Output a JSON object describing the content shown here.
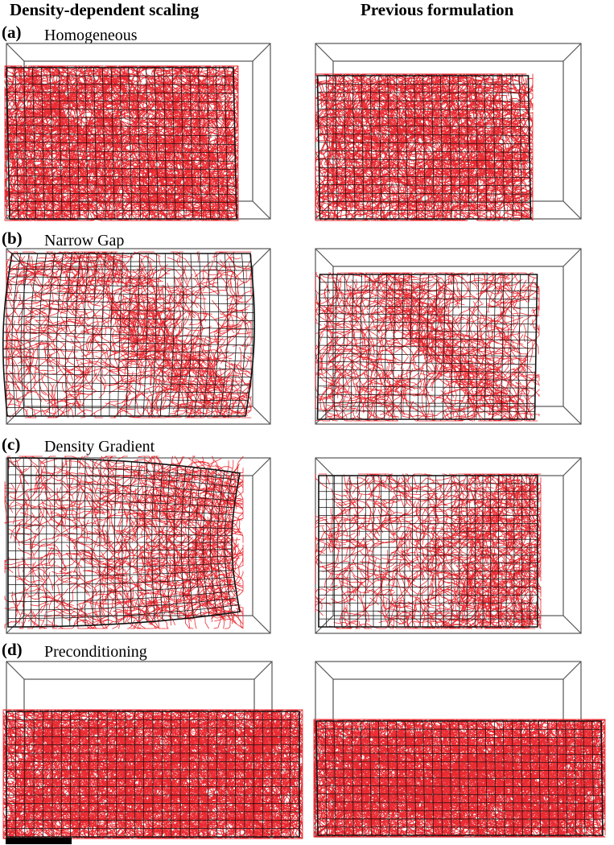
{
  "figure": {
    "column_headers": {
      "left": "Density-dependent scaling",
      "right": "Previous formulation"
    },
    "rows": [
      {
        "letter": "(a)",
        "title": "Homogeneous"
      },
      {
        "letter": "(b)",
        "title": "Narrow Gap"
      },
      {
        "letter": "(c)",
        "title": "Density Gradient"
      },
      {
        "letter": "(d)",
        "title": "Preconditioning"
      }
    ],
    "colors": {
      "fiber": "#e8141c",
      "mesh": "#111111",
      "box": "#555555"
    }
  }
}
